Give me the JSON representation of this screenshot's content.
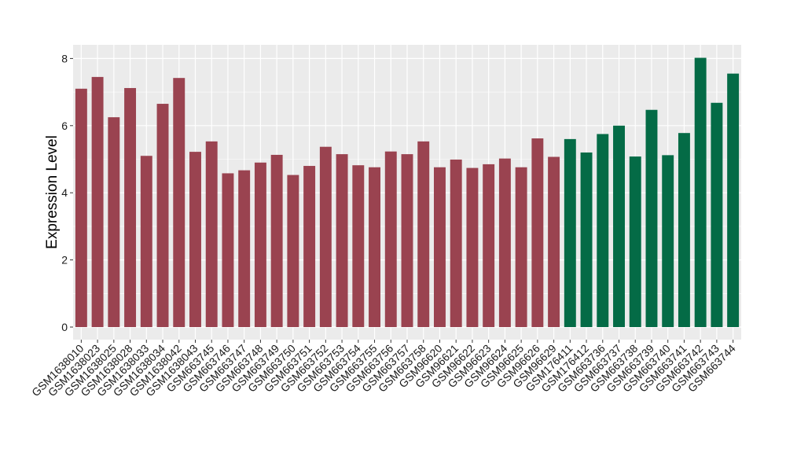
{
  "chart_data": {
    "type": "bar",
    "ylabel": "Expression Level",
    "xlabel": "",
    "ylim": [
      0,
      8.2
    ],
    "yticks": [
      0,
      2,
      4,
      6,
      8
    ],
    "grid": true,
    "panel_background": "#ebebeb",
    "grid_color": "#ffffff",
    "colors": {
      "group_a": "#9a4350",
      "group_b": "#046b46"
    },
    "categories": [
      "GSM1638010",
      "GSM1638023",
      "GSM1638025",
      "GSM1638028",
      "GSM1638033",
      "GSM1638034",
      "GSM1638042",
      "GSM1638043",
      "GSM663745",
      "GSM663746",
      "GSM663747",
      "GSM663748",
      "GSM663749",
      "GSM663750",
      "GSM663751",
      "GSM663752",
      "GSM663753",
      "GSM663754",
      "GSM663755",
      "GSM663756",
      "GSM663757",
      "GSM663758",
      "GSM96620",
      "GSM96621",
      "GSM96622",
      "GSM96623",
      "GSM96624",
      "GSM96625",
      "GSM96626",
      "GSM96629",
      "GSM176411",
      "GSM176412",
      "GSM663736",
      "GSM663737",
      "GSM663738",
      "GSM663739",
      "GSM663740",
      "GSM663741",
      "GSM663742",
      "GSM663743",
      "GSM663744"
    ],
    "values": [
      7.1,
      7.45,
      6.25,
      7.12,
      5.1,
      6.65,
      7.42,
      5.22,
      5.53,
      4.58,
      4.67,
      4.9,
      5.13,
      4.53,
      4.8,
      5.37,
      5.15,
      4.82,
      4.76,
      5.23,
      5.15,
      5.53,
      4.76,
      4.99,
      4.74,
      4.85,
      5.02,
      4.76,
      5.62,
      5.07,
      5.6,
      5.2,
      5.75,
      6.0,
      5.08,
      6.47,
      5.12,
      5.78,
      8.02,
      6.68,
      7.55
    ],
    "groups": [
      "a",
      "a",
      "a",
      "a",
      "a",
      "a",
      "a",
      "a",
      "a",
      "a",
      "a",
      "a",
      "a",
      "a",
      "a",
      "a",
      "a",
      "a",
      "a",
      "a",
      "a",
      "a",
      "a",
      "a",
      "a",
      "a",
      "a",
      "a",
      "a",
      "a",
      "b",
      "b",
      "b",
      "b",
      "b",
      "b",
      "b",
      "b",
      "b",
      "b",
      "b"
    ]
  }
}
